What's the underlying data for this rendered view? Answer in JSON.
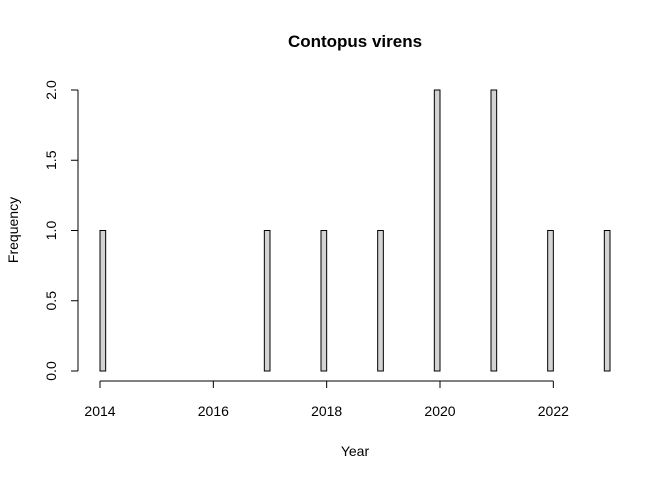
{
  "chart_data": {
    "type": "bar",
    "title": "Contopus virens",
    "xlabel": "Year",
    "ylabel": "Frequency",
    "bin_width": 0.1,
    "x": [
      2014,
      2017,
      2018,
      2019,
      2020,
      2021,
      2022,
      2023
    ],
    "values": [
      1,
      1,
      1,
      1,
      2,
      2,
      1,
      1
    ],
    "xlim": [
      2014,
      2023
    ],
    "ylim": [
      0,
      2
    ],
    "xticks": [
      "2014",
      "2016",
      "2018",
      "2020",
      "2022"
    ],
    "yticks": [
      "0.0",
      "0.5",
      "1.0",
      "1.5",
      "2.0"
    ],
    "bar_fill": "#d3d3d3",
    "bar_stroke": "#000000",
    "grid": false
  }
}
